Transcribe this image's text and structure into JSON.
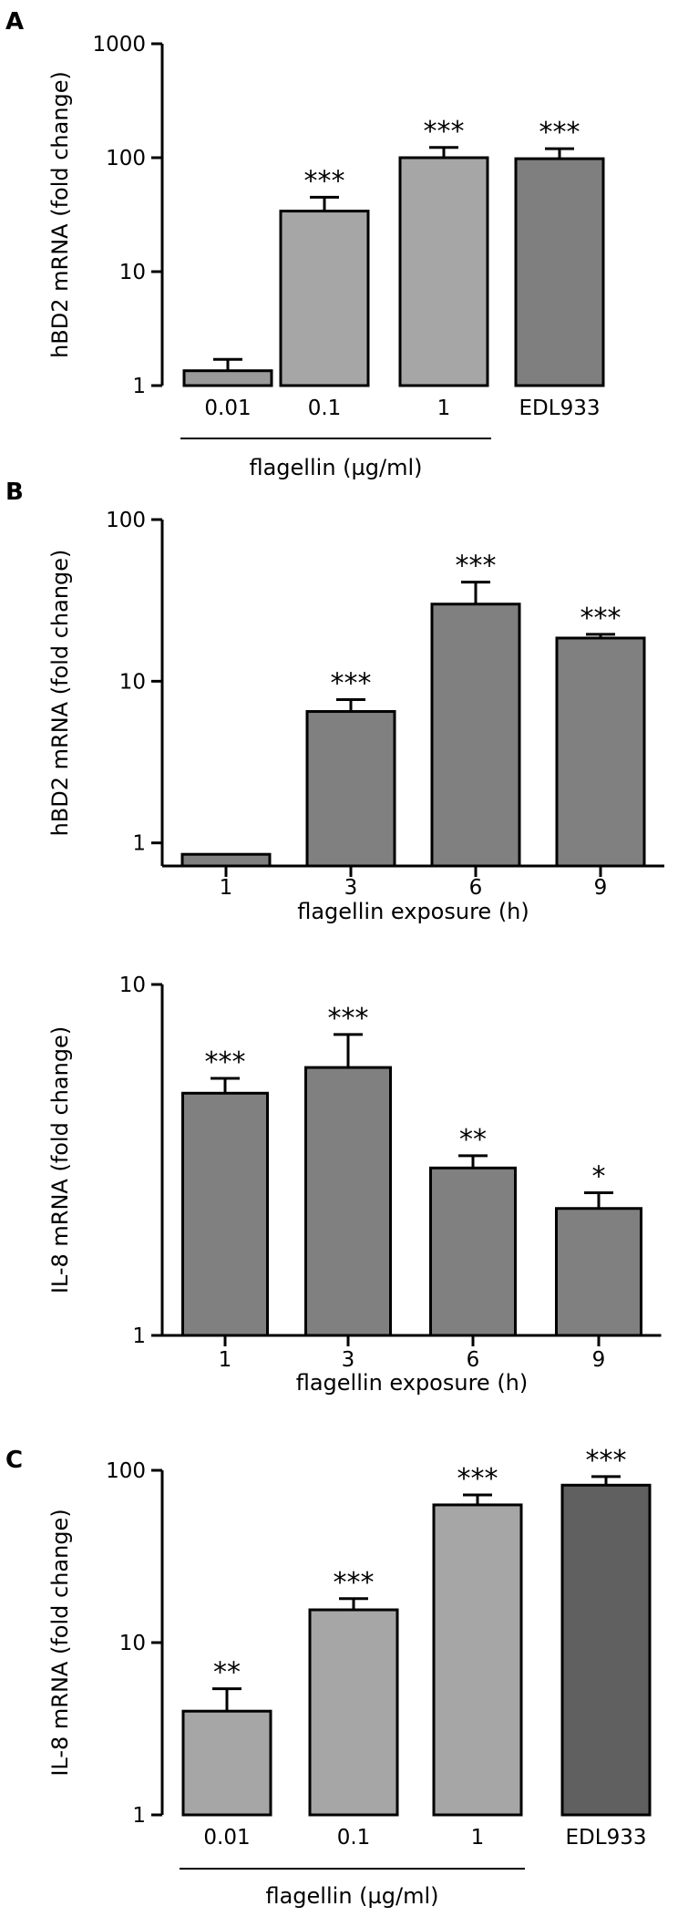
{
  "panels": {
    "A": "A",
    "B": "B",
    "C": "C"
  },
  "chart_data": [
    {
      "id": "A",
      "type": "bar",
      "yscale": "log",
      "ylim": [
        1,
        1000
      ],
      "yticks": [
        1,
        10,
        100,
        1000
      ],
      "ytick_labels": [
        "1",
        "10",
        "100",
        "1000"
      ],
      "ylabel": "hBD2 mRNA (fold change)",
      "xlabel": "flagellin (µg/ml)",
      "categories": [
        "0.01",
        "0.1",
        "1",
        "EDL933"
      ],
      "values": [
        1.35,
        34,
        100,
        98
      ],
      "errors_upper": [
        1.7,
        45,
        123,
        120
      ],
      "significance": [
        "",
        "***",
        "***",
        "***"
      ],
      "bar_colors": [
        "#9a9a9a",
        "#a6a6a6",
        "#a6a6a6",
        "#7f7f7f"
      ],
      "group_line_under": [
        0,
        2
      ]
    },
    {
      "id": "B-top",
      "type": "bar",
      "yscale": "log",
      "ylim": [
        0.72,
        100
      ],
      "yticks": [
        1,
        10,
        100
      ],
      "ytick_labels": [
        "1",
        "10",
        "100"
      ],
      "ylabel": "hBD2 mRNA (fold change)",
      "xlabel": "flagellin exposure (h)",
      "categories": [
        "1",
        "3",
        "6",
        "9"
      ],
      "values": [
        0.85,
        6.5,
        30,
        18.5
      ],
      "errors_upper": [
        0.8,
        7.7,
        41,
        19.5
      ],
      "errors_lower": [
        0.78,
        null,
        null,
        null
      ],
      "significance": [
        "",
        "***",
        "***",
        "***"
      ],
      "bar_colors": [
        "#808080",
        "#808080",
        "#808080",
        "#808080"
      ]
    },
    {
      "id": "B-bottom",
      "type": "bar",
      "yscale": "log",
      "ylim": [
        1,
        10
      ],
      "yticks": [
        1,
        10
      ],
      "ytick_labels": [
        "1",
        "10"
      ],
      "ylabel": "IL-8 mRNA (fold change)",
      "xlabel": "flagellin exposure (h)",
      "categories": [
        "1",
        "3",
        "6",
        "9"
      ],
      "values": [
        4.9,
        5.8,
        3.0,
        2.3
      ],
      "errors_upper": [
        5.4,
        7.2,
        3.25,
        2.55
      ],
      "significance": [
        "***",
        "***",
        "**",
        "*"
      ],
      "bar_colors": [
        "#808080",
        "#808080",
        "#808080",
        "#808080"
      ]
    },
    {
      "id": "C",
      "type": "bar",
      "yscale": "log",
      "ylim": [
        1,
        100
      ],
      "yticks": [
        1,
        10,
        100
      ],
      "ytick_labels": [
        "1",
        "10",
        "100"
      ],
      "ylabel": "IL-8 mRNA (fold change)",
      "xlabel": "flagellin (µg/ml)",
      "categories": [
        "0.01",
        "0.1",
        "1",
        "EDL933"
      ],
      "values": [
        4.0,
        15.5,
        63,
        82
      ],
      "errors_upper": [
        5.4,
        18,
        72,
        92
      ],
      "significance": [
        "**",
        "***",
        "***",
        "***"
      ],
      "bar_colors": [
        "#a6a6a6",
        "#a6a6a6",
        "#a6a6a6",
        "#606060"
      ],
      "group_line_under": [
        0,
        2
      ]
    }
  ]
}
